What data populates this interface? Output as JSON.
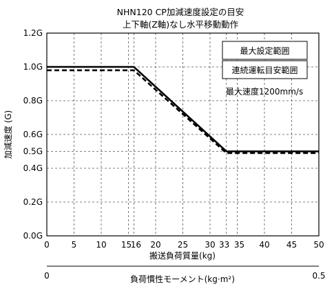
{
  "chart_data": {
    "type": "line",
    "title": "NHN120 CP加減速度設定の目安",
    "subtitle": "上下軸(Z軸)なし水平移動動作",
    "xlabel": "搬送負荷質量(kg)",
    "ylabel": "加減速度 (G)",
    "secondary_xlabel": "負荷慣性モーメント(kg·m²)",
    "secondary_x_ticks": [
      "0",
      "0.5"
    ],
    "xlim": [
      0,
      50
    ],
    "ylim": [
      0,
      1.2
    ],
    "x_ticks": [
      0,
      5,
      10,
      15,
      16,
      20,
      25,
      30,
      33,
      35,
      40,
      45,
      50
    ],
    "x_tick_labels": [
      "0",
      "5",
      "10",
      "15",
      "16",
      "20",
      "25",
      "30",
      "33",
      "35",
      "40",
      "45",
      "50"
    ],
    "y_ticks": [
      0,
      0.2,
      0.4,
      0.5,
      0.6,
      0.8,
      1.0,
      1.2
    ],
    "y_tick_labels": [
      "0.0G",
      "0.2G",
      "0.4G",
      "0.5G",
      "0.6G",
      "0.8G",
      "1.0G",
      "1.2G"
    ],
    "grid": true,
    "series": [
      {
        "name": "最大設定範囲",
        "style": "solid",
        "color": "#000000",
        "x": [
          0,
          16,
          33,
          50
        ],
        "y": [
          1.0,
          1.0,
          0.5,
          0.5
        ]
      },
      {
        "name": "連続運転目安範囲",
        "style": "dashed",
        "color": "#000000",
        "x": [
          0,
          16,
          33,
          50
        ],
        "y": [
          0.98,
          0.98,
          0.49,
          0.49
        ]
      }
    ],
    "legend_position": "top-right",
    "annotation": "最大速度1200mm/s"
  }
}
